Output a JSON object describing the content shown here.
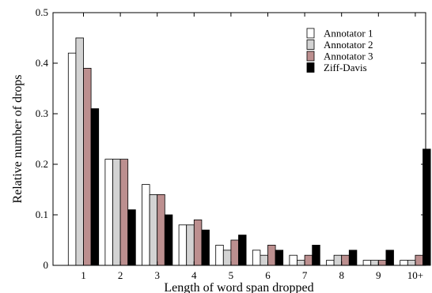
{
  "chart_data": {
    "type": "bar",
    "xlabel": "Length of word span dropped",
    "ylabel": "Relative number of drops",
    "ylim": [
      0,
      0.5
    ],
    "yticks": [
      "0",
      "0.1",
      "0.2",
      "0.3",
      "0.4",
      "0.5"
    ],
    "grid": false,
    "legend_position": "top-right",
    "categories": [
      "1",
      "2",
      "3",
      "4",
      "5",
      "6",
      "7",
      "8",
      "9",
      "10+"
    ],
    "series": [
      {
        "name": "Annotator 1",
        "color": "#ffffff",
        "values": [
          0.42,
          0.21,
          0.16,
          0.08,
          0.04,
          0.03,
          0.02,
          0.01,
          0.01,
          0.01
        ]
      },
      {
        "name": "Annotator 2",
        "color": "#d3d3d3",
        "values": [
          0.45,
          0.21,
          0.14,
          0.08,
          0.03,
          0.02,
          0.01,
          0.02,
          0.01,
          0.01
        ]
      },
      {
        "name": "Annotator 3",
        "color": "#bc8f8f",
        "values": [
          0.39,
          0.21,
          0.14,
          0.09,
          0.05,
          0.04,
          0.02,
          0.02,
          0.01,
          0.02
        ]
      },
      {
        "name": "Ziff-Davis",
        "color": "#000000",
        "values": [
          0.31,
          0.11,
          0.1,
          0.07,
          0.06,
          0.03,
          0.04,
          0.03,
          0.03,
          0.23
        ]
      }
    ]
  }
}
